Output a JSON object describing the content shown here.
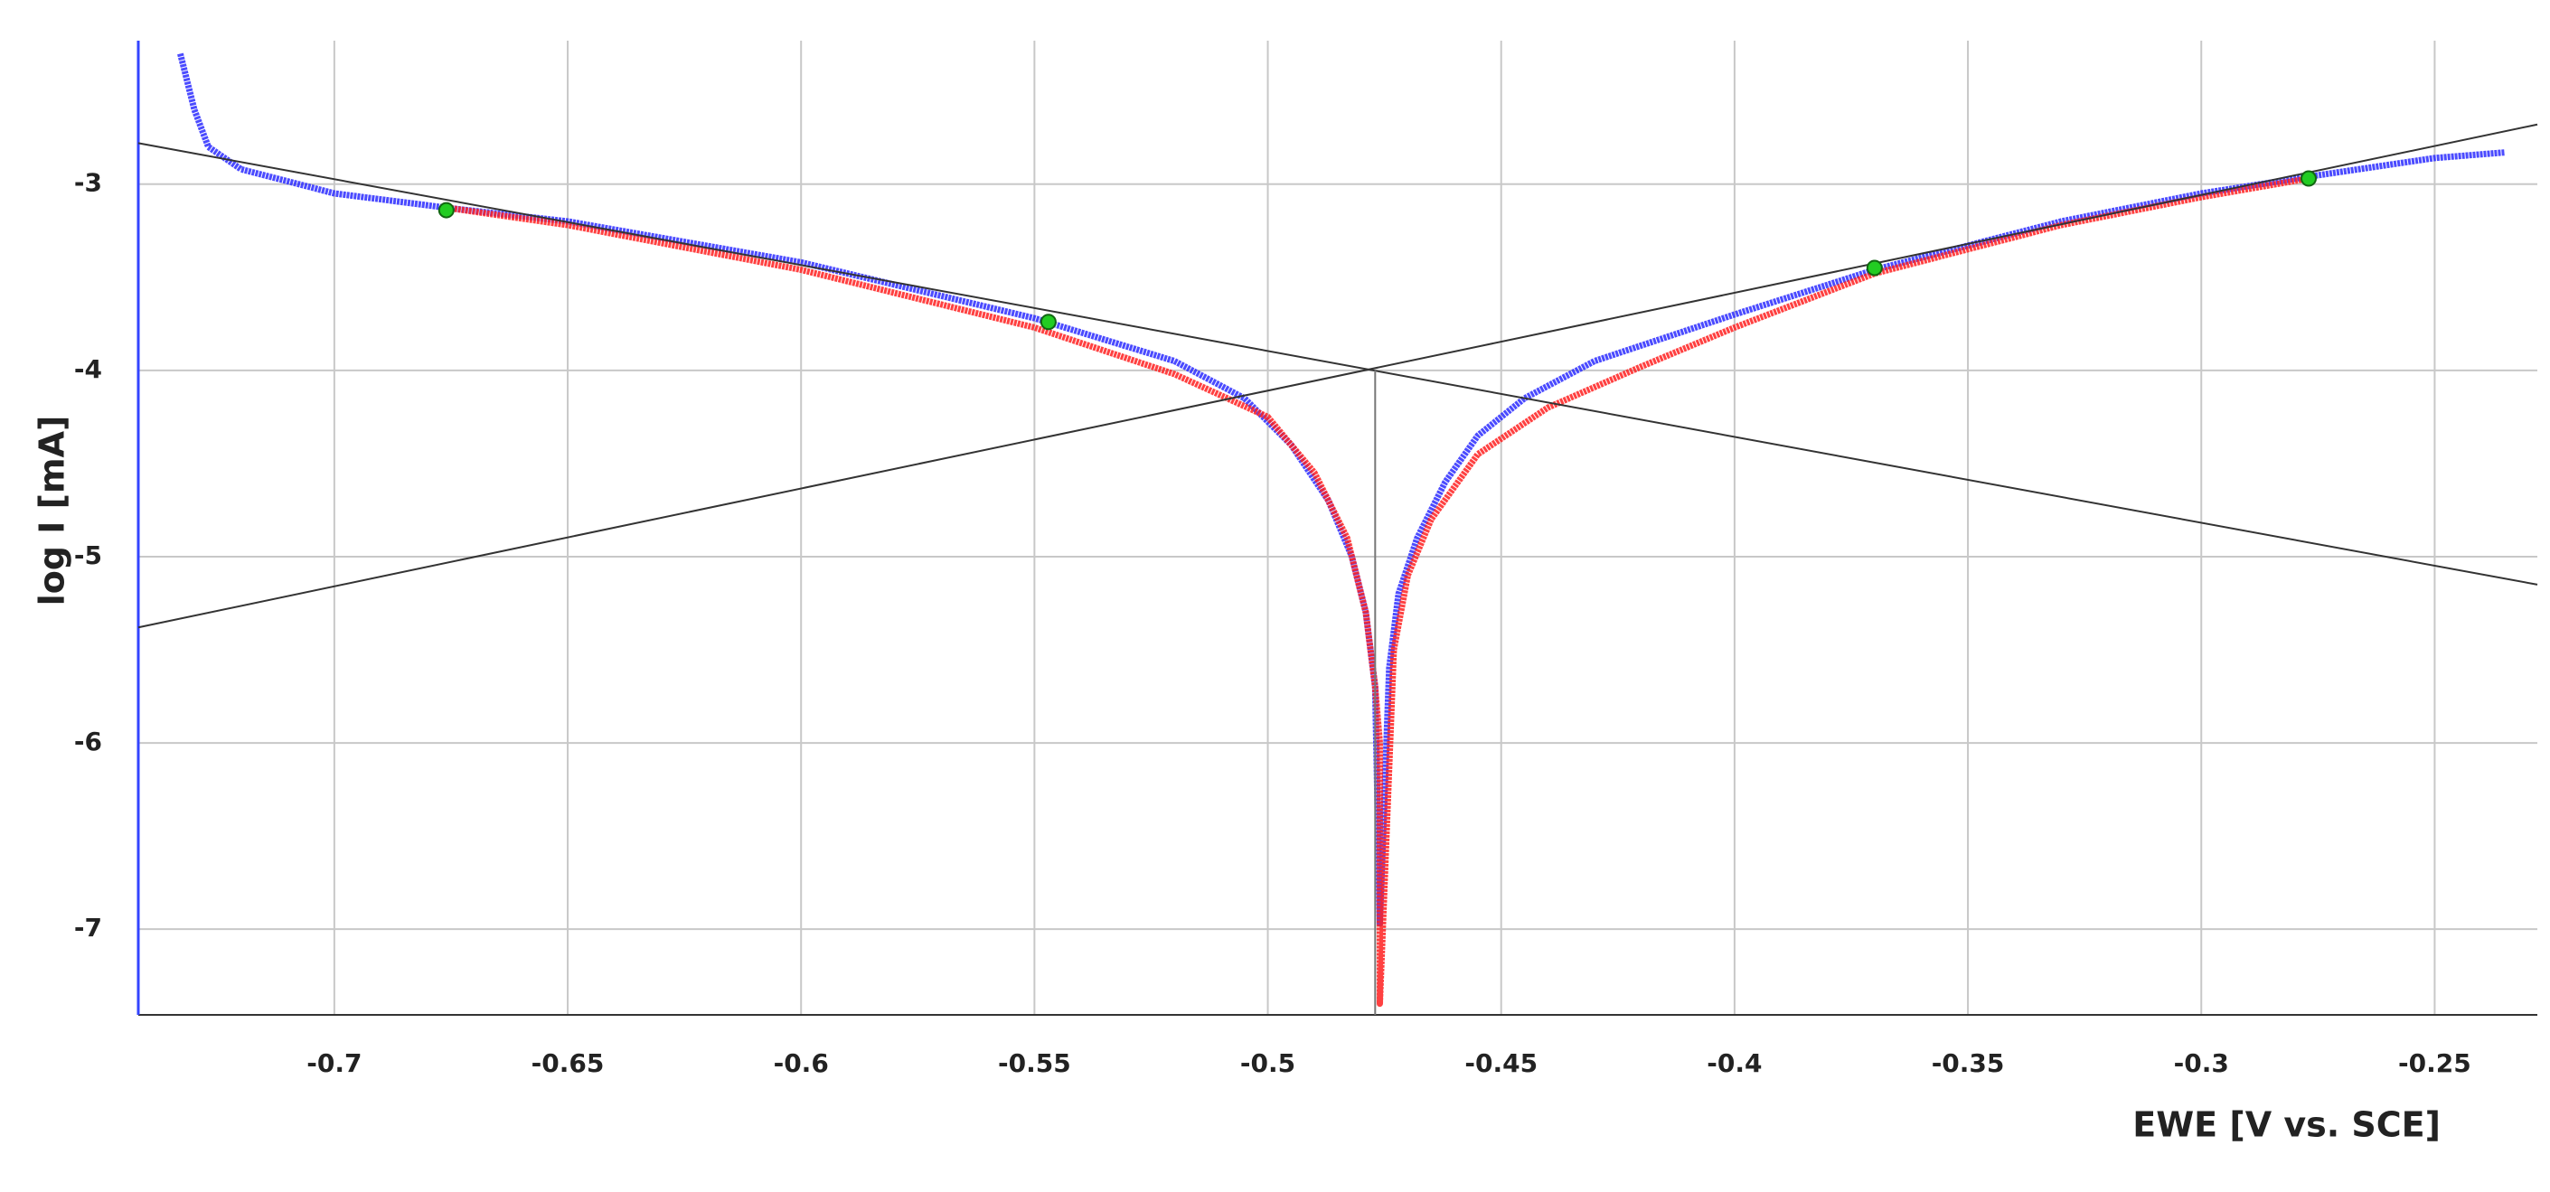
{
  "chart_data": {
    "type": "scatter",
    "x_label": "EWE [V vs. SCE]",
    "y_label": "log I [mA]",
    "xlim": [
      -0.742,
      -0.228
    ],
    "ylim": [
      -7.46,
      -2.23
    ],
    "xticks": [
      -0.7,
      -0.65,
      -0.6,
      -0.55,
      -0.5,
      -0.45,
      -0.4,
      -0.35,
      -0.3,
      -0.25
    ],
    "yticks": [
      -7,
      -6,
      -5,
      -4,
      -3
    ],
    "grid": true,
    "series": [
      {
        "marker": "x",
        "color": "#2b2bff",
        "x": [
          -0.733,
          -0.73,
          -0.727,
          -0.72,
          -0.7,
          -0.675,
          -0.65,
          -0.6,
          -0.55,
          -0.52,
          -0.505,
          -0.495,
          -0.487,
          -0.482,
          -0.479,
          -0.477,
          -0.476,
          -0.474,
          -0.472,
          -0.468,
          -0.462,
          -0.455,
          -0.445,
          -0.43,
          -0.4,
          -0.37,
          -0.33,
          -0.3,
          -0.277,
          -0.25,
          -0.235
        ],
        "values": [
          -2.3,
          -2.6,
          -2.8,
          -2.92,
          -3.05,
          -3.13,
          -3.2,
          -3.42,
          -3.72,
          -3.95,
          -4.15,
          -4.4,
          -4.7,
          -5.0,
          -5.3,
          -5.7,
          -6.97,
          -5.6,
          -5.2,
          -4.9,
          -4.6,
          -4.35,
          -4.15,
          -3.95,
          -3.7,
          -3.46,
          -3.2,
          -3.05,
          -2.96,
          -2.86,
          -2.83
        ]
      },
      {
        "marker": "x",
        "color": "#ff2020",
        "x": [
          -0.675,
          -0.65,
          -0.6,
          -0.55,
          -0.52,
          -0.5,
          -0.49,
          -0.483,
          -0.479,
          -0.477,
          -0.476,
          -0.476,
          -0.473,
          -0.47,
          -0.465,
          -0.455,
          -0.44,
          -0.42,
          -0.4,
          -0.37,
          -0.33,
          -0.3,
          -0.277
        ],
        "values": [
          -3.13,
          -3.22,
          -3.46,
          -3.77,
          -4.02,
          -4.25,
          -4.55,
          -4.9,
          -5.3,
          -5.7,
          -6.0,
          -7.4,
          -5.5,
          -5.1,
          -4.8,
          -4.45,
          -4.2,
          -3.98,
          -3.77,
          -3.48,
          -3.22,
          -3.07,
          -2.97
        ]
      },
      {
        "marker": "line",
        "color": "#333333",
        "x": [
          -0.742,
          -0.228
        ],
        "values": [
          -2.78,
          -5.15
        ]
      },
      {
        "marker": "line",
        "color": "#333333",
        "x": [
          -0.742,
          -0.228
        ],
        "values": [
          -5.38,
          -2.68
        ]
      },
      {
        "marker": "line",
        "color": "#777777",
        "x": [
          -0.477,
          -0.477
        ],
        "values": [
          -4.0,
          -7.46
        ]
      },
      {
        "marker": "circle",
        "color": "#22cc22",
        "x": [
          -0.676,
          -0.547,
          -0.37,
          -0.277
        ],
        "values": [
          -3.14,
          -3.74,
          -3.45,
          -2.97
        ]
      }
    ]
  }
}
